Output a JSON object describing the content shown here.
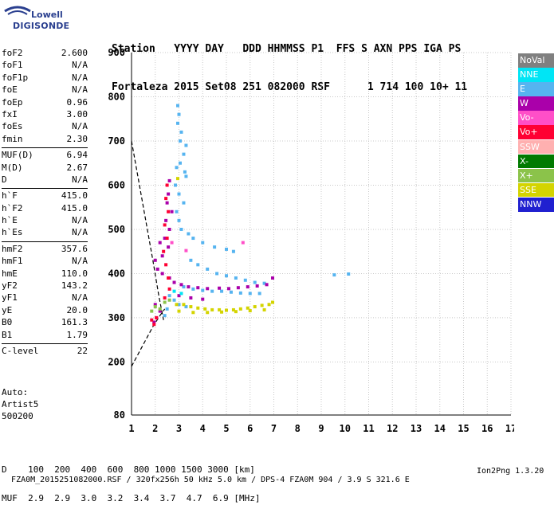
{
  "logo": {
    "line1": "Lowell",
    "line2": "DIGISONDE"
  },
  "header": {
    "line1": "Station   YYYY DAY   DDD HHMMSS P1  FFS S AXN PPS IGA PS",
    "line2": "Fortaleza 2015 Set08 251 082000 RSF      1 714 100 10+ 11"
  },
  "params": {
    "group1": [
      {
        "label": "foF2",
        "value": "2.600"
      },
      {
        "label": "foF1",
        "value": "N/A"
      },
      {
        "label": "foF1p",
        "value": "N/A"
      },
      {
        "label": "foE",
        "value": "N/A"
      },
      {
        "label": "foEp",
        "value": "0.96"
      },
      {
        "label": "fxI",
        "value": "3.00"
      },
      {
        "label": "foEs",
        "value": "N/A"
      },
      {
        "label": "fmin",
        "value": "2.30"
      }
    ],
    "group2": [
      {
        "label": "MUF(D)",
        "value": "6.94"
      },
      {
        "label": "M(D)",
        "value": "2.67"
      },
      {
        "label": "D",
        "value": "N/A"
      }
    ],
    "group3": [
      {
        "label": "h`F",
        "value": "415.0"
      },
      {
        "label": "h`F2",
        "value": "415.0"
      },
      {
        "label": "h`E",
        "value": "N/A"
      },
      {
        "label": "h`Es",
        "value": "N/A"
      }
    ],
    "group4": [
      {
        "label": "hmF2",
        "value": "357.6"
      },
      {
        "label": "hmF1",
        "value": "N/A"
      },
      {
        "label": "hmE",
        "value": "110.0"
      },
      {
        "label": "yF2",
        "value": "143.2"
      },
      {
        "label": "yF1",
        "value": "N/A"
      },
      {
        "label": "yE",
        "value": "20.0"
      },
      {
        "label": "B0",
        "value": "161.3"
      },
      {
        "label": "B1",
        "value": "1.79"
      }
    ],
    "group5": [
      {
        "label": "C-level",
        "value": "22"
      }
    ]
  },
  "auto": {
    "line1": "Auto:",
    "line2": "Artist5",
    "line3": "500200"
  },
  "bottom": {
    "d_row": "D    100  200  400  600  800 1000 1500 3000 [km]",
    "muf_row": "MUF  2.9  2.9  3.0  3.2  3.4  3.7  4.7  6.9 [MHz]"
  },
  "footer": {
    "left": "FZA0M_2015251082000.RSF / 320fx256h 50 kHz 5.0 km / DPS-4 FZA0M 904 / 3.9 S 321.6 E",
    "right": "Ion2Png 1.3.20"
  },
  "legend": [
    {
      "label": "NoVal",
      "color": "#808080"
    },
    {
      "label": "NNE",
      "color": "#00e5f5"
    },
    {
      "label": "E",
      "color": "#56b4f0"
    },
    {
      "label": "W",
      "color": "#aa00aa"
    },
    {
      "label": "Vo-",
      "color": "#ff4fc8"
    },
    {
      "label": "Vo+",
      "color": "#ff0033"
    },
    {
      "label": "SSW",
      "color": "#ffb0b0"
    },
    {
      "label": "X-",
      "color": "#007a00"
    },
    {
      "label": "X+",
      "color": "#8bc34a"
    },
    {
      "label": "SSE",
      "color": "#d4d400"
    },
    {
      "label": "NNW",
      "color": "#2020d0"
    }
  ],
  "chart_data": {
    "type": "scatter",
    "title": "",
    "xlabel": "",
    "ylabel": "",
    "xlim": [
      1,
      17
    ],
    "ylim": [
      80,
      900
    ],
    "x_ticks": [
      "1",
      "2",
      "3",
      "4",
      "5",
      "6",
      "7",
      "8",
      "9",
      "10",
      "11",
      "12",
      "13",
      "14",
      "15",
      "16",
      "17"
    ],
    "y_ticks": [
      "80",
      "200",
      "300",
      "400",
      "500",
      "600",
      "700",
      "800",
      "900"
    ],
    "grid": true,
    "legend_position": "right",
    "series": [
      {
        "name": "E",
        "points": [
          [
            2.95,
            780
          ],
          [
            3.0,
            760
          ],
          [
            2.95,
            740
          ],
          [
            3.1,
            720
          ],
          [
            3.05,
            700
          ],
          [
            3.3,
            690
          ],
          [
            3.2,
            670
          ],
          [
            3.05,
            650
          ],
          [
            2.9,
            640
          ],
          [
            3.25,
            630
          ],
          [
            3.3,
            620
          ],
          [
            2.85,
            600
          ],
          [
            3.0,
            580
          ],
          [
            3.2,
            560
          ],
          [
            2.9,
            540
          ],
          [
            3.0,
            520
          ],
          [
            3.1,
            500
          ],
          [
            3.4,
            490
          ],
          [
            3.6,
            480
          ],
          [
            4.0,
            470
          ],
          [
            4.5,
            460
          ],
          [
            5.0,
            455
          ],
          [
            5.3,
            450
          ],
          [
            3.5,
            430
          ],
          [
            3.8,
            420
          ],
          [
            4.2,
            410
          ],
          [
            4.6,
            400
          ],
          [
            5.0,
            395
          ],
          [
            5.4,
            390
          ],
          [
            5.8,
            385
          ],
          [
            6.2,
            380
          ],
          [
            6.6,
            378
          ],
          [
            3.2,
            370
          ],
          [
            3.6,
            365
          ],
          [
            4.0,
            362
          ],
          [
            4.4,
            360
          ],
          [
            4.8,
            360
          ],
          [
            5.2,
            358
          ],
          [
            5.6,
            356
          ],
          [
            6.0,
            355
          ],
          [
            6.4,
            355
          ],
          [
            2.6,
            350
          ],
          [
            2.8,
            340
          ],
          [
            3.0,
            330
          ],
          [
            3.3,
            325
          ],
          [
            2.5,
            320
          ],
          [
            2.4,
            305
          ],
          [
            9.55,
            397
          ],
          [
            10.15,
            399
          ]
        ]
      },
      {
        "name": "W",
        "points": [
          [
            2.6,
            610
          ],
          [
            2.55,
            580
          ],
          [
            2.5,
            560
          ],
          [
            2.7,
            540
          ],
          [
            2.45,
            520
          ],
          [
            2.6,
            500
          ],
          [
            2.4,
            480
          ],
          [
            2.2,
            470
          ],
          [
            2.55,
            460
          ],
          [
            2.3,
            440
          ],
          [
            2.0,
            430
          ],
          [
            2.1,
            410
          ],
          [
            2.3,
            400
          ],
          [
            2.6,
            390
          ],
          [
            2.8,
            380
          ],
          [
            3.1,
            375
          ],
          [
            3.4,
            370
          ],
          [
            3.8,
            368
          ],
          [
            4.2,
            366
          ],
          [
            4.7,
            367
          ],
          [
            5.1,
            366
          ],
          [
            5.5,
            368
          ],
          [
            5.9,
            370
          ],
          [
            6.3,
            372
          ],
          [
            6.7,
            375
          ],
          [
            6.95,
            390
          ],
          [
            3.0,
            350
          ],
          [
            3.5,
            345
          ],
          [
            4.0,
            342
          ],
          [
            2.0,
            330
          ],
          [
            2.2,
            315
          ],
          [
            2.05,
            300
          ],
          [
            1.95,
            290
          ]
        ]
      },
      {
        "name": "Vo+",
        "points": [
          [
            2.5,
            600
          ],
          [
            2.45,
            570
          ],
          [
            2.55,
            540
          ],
          [
            2.4,
            510
          ],
          [
            2.5,
            480
          ],
          [
            2.35,
            450
          ],
          [
            2.45,
            420
          ],
          [
            2.55,
            390
          ],
          [
            2.6,
            365
          ],
          [
            2.4,
            345
          ],
          [
            1.85,
            295
          ],
          [
            1.95,
            285
          ],
          [
            2.05,
            300
          ]
        ]
      },
      {
        "name": "SSE",
        "points": [
          [
            2.9,
            330
          ],
          [
            3.2,
            330
          ],
          [
            3.5,
            325
          ],
          [
            3.8,
            322
          ],
          [
            4.1,
            320
          ],
          [
            4.4,
            318
          ],
          [
            4.7,
            318
          ],
          [
            5.0,
            317
          ],
          [
            5.3,
            318
          ],
          [
            5.6,
            320
          ],
          [
            5.9,
            322
          ],
          [
            6.2,
            325
          ],
          [
            6.5,
            328
          ],
          [
            6.8,
            330
          ],
          [
            6.95,
            335
          ],
          [
            3.0,
            315
          ],
          [
            3.6,
            312
          ],
          [
            4.2,
            312
          ],
          [
            4.8,
            313
          ],
          [
            5.4,
            314
          ],
          [
            6.0,
            316
          ],
          [
            6.6,
            318
          ],
          [
            2.95,
            615
          ]
        ]
      },
      {
        "name": "X+",
        "points": [
          [
            2.0,
            325
          ],
          [
            2.2,
            320
          ],
          [
            1.85,
            315
          ],
          [
            2.4,
            335
          ],
          [
            2.6,
            340
          ]
        ]
      },
      {
        "name": "NNE",
        "points": [
          [
            2.8,
            360
          ],
          [
            3.1,
            355
          ]
        ]
      },
      {
        "name": "Vo-",
        "points": [
          [
            2.7,
            470
          ],
          [
            3.3,
            452
          ],
          [
            5.7,
            470
          ]
        ]
      }
    ]
  }
}
